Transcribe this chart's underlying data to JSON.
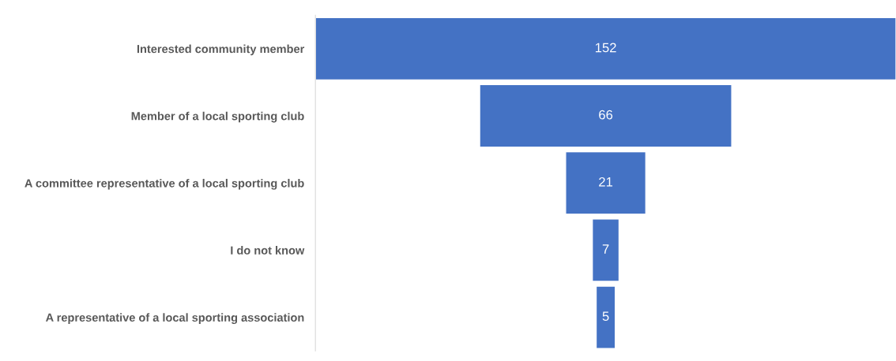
{
  "chart_data": {
    "type": "other",
    "categories": [
      "Interested community member",
      "Member of a local sporting club",
      "A committee representative of a local sporting club",
      "I do not know",
      "A representative of a local sporting association"
    ],
    "values": [
      152,
      66,
      21,
      7,
      5
    ],
    "color": "#4472c4",
    "data_labels": true
  }
}
